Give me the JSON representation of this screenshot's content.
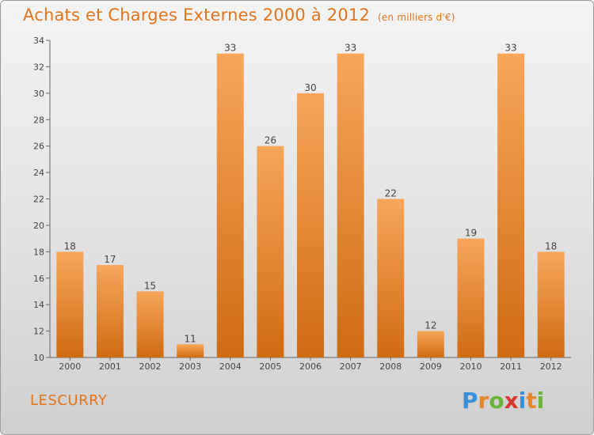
{
  "header": {
    "title": "Achats et Charges Externes 2000 à 2012",
    "subtitle": "(en milliers d'€)"
  },
  "footer": {
    "commune": "LESCURRY",
    "brand": "Proxiti"
  },
  "colors": {
    "bar_top": "#f7a65a",
    "bar_bottom": "#d06b12",
    "accent": "#e2741b"
  },
  "chart_data": {
    "type": "bar",
    "title": "Achats et Charges Externes 2000 à 2012",
    "subtitle": "(en milliers d'€)",
    "categories": [
      "2000",
      "2001",
      "2002",
      "2003",
      "2004",
      "2005",
      "2006",
      "2007",
      "2008",
      "2009",
      "2010",
      "2011",
      "2012"
    ],
    "values": [
      18,
      17,
      15,
      11,
      33,
      26,
      30,
      33,
      22,
      12,
      19,
      33,
      18
    ],
    "ylim": [
      10,
      34
    ],
    "yticks": [
      10,
      12,
      14,
      16,
      18,
      20,
      22,
      24,
      26,
      28,
      30,
      32,
      34
    ],
    "grid": false,
    "legend": "none"
  }
}
